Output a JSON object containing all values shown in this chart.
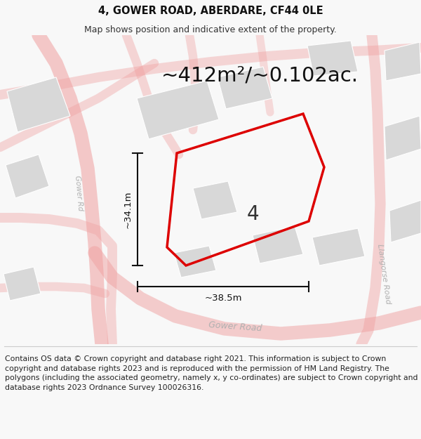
{
  "title_line1": "4, GOWER ROAD, ABERDARE, CF44 0LE",
  "title_line2": "Map shows position and indicative extent of the property.",
  "area_label": "~412m²/~0.102ac.",
  "dim_h_label": "~34.1m",
  "dim_w_label": "~38.5m",
  "number_label": "4",
  "footer_text": "Contains OS data © Crown copyright and database right 2021. This information is subject to Crown copyright and database rights 2023 and is reproduced with the permission of HM Land Registry. The polygons (including the associated geometry, namely x, y co-ordinates) are subject to Crown copyright and database rights 2023 Ordnance Survey 100026316.",
  "bg_color": "#f8f8f8",
  "map_bg_color": "#ffffff",
  "road_color": "#f0a0a0",
  "building_color": "#d8d8d8",
  "building_edge_color": "#cccccc",
  "property_color": "#dd0000",
  "dim_color": "#111111",
  "road_label_color": "#b0b0b0",
  "title_fontsize": 10.5,
  "subtitle_fontsize": 9,
  "area_fontsize": 21,
  "number_fontsize": 20,
  "dim_fontsize": 9.5,
  "footer_fontsize": 7.8
}
